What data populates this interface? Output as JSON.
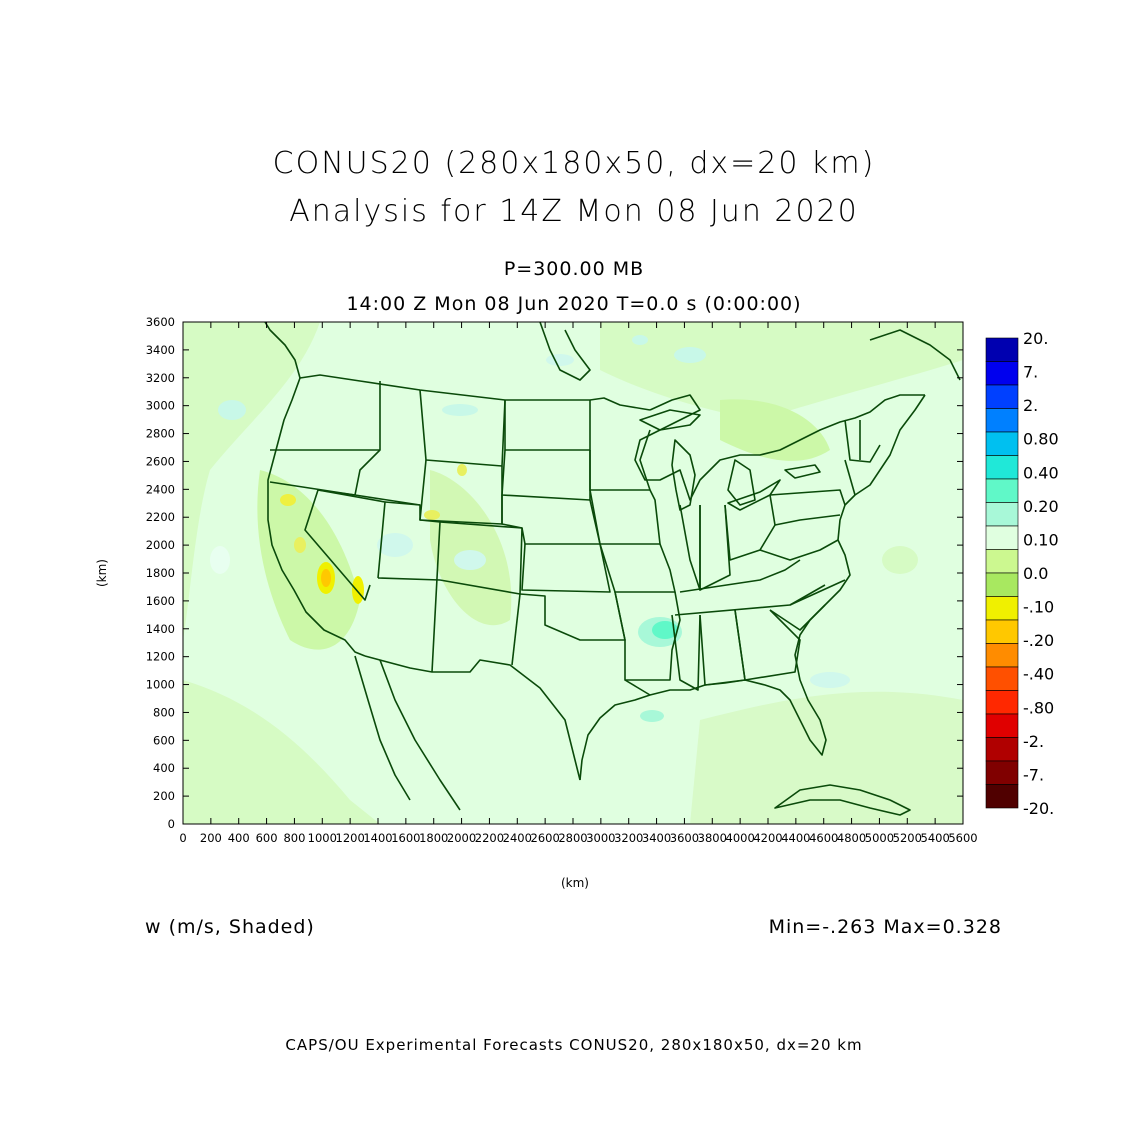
{
  "header": {
    "title_line1": "CONUS20 (280x180x50, dx=20 km)",
    "title_line2": "Analysis for 14Z Mon 08 Jun 2020",
    "level": "P=300.00 MB",
    "time": "14:00 Z Mon 08 Jun 2020    T=0.0 s (0:00:00)"
  },
  "variable_label": "w (m/s, Shaded)",
  "min_max": "Min=-.263  Max=0.328",
  "footer": "CAPS/OU Experimental Forecasts  CONUS20, 280x180x50, dx=20 km",
  "chart_data": {
    "type": "heatmap",
    "xlabel": "(km)",
    "ylabel": "(km)",
    "xlim": [
      0,
      5600
    ],
    "ylim": [
      0,
      3600
    ],
    "x_ticks": [
      0,
      200,
      400,
      600,
      800,
      1000,
      1200,
      1400,
      1600,
      1800,
      2000,
      2200,
      2400,
      2600,
      2800,
      3000,
      3200,
      3400,
      3600,
      3800,
      4000,
      4200,
      4400,
      4600,
      4800,
      5000,
      5200,
      5400,
      5600
    ],
    "y_ticks": [
      0,
      200,
      400,
      600,
      800,
      1000,
      1200,
      1400,
      1600,
      1800,
      2000,
      2200,
      2400,
      2600,
      2800,
      3000,
      3200,
      3400,
      3600
    ],
    "colorbar": {
      "labels": [
        "20.",
        "7.",
        "2.",
        "0.80",
        "0.40",
        "0.20",
        "0.10",
        "0.0",
        "-.10",
        "-.20",
        "-.40",
        "-.80",
        "-2.",
        "-7.",
        "-20."
      ],
      "colors": [
        "#0000b0",
        "#0000ee",
        "#0040ff",
        "#0080ff",
        "#00c0f0",
        "#20e8d8",
        "#60f8c8",
        "#a8f8d8",
        "#e0ffe0",
        "#ccf890",
        "#a8e860",
        "#f0f000",
        "#ffc800",
        "#ff8c00",
        "#ff5000",
        "#ff2800",
        "#e00000",
        "#b00000",
        "#800000",
        "#500000"
      ]
    },
    "field": {
      "variable": "w",
      "units": "m/s",
      "min": -0.263,
      "max": 0.328
    },
    "map": {
      "projection": "CONUS",
      "features": [
        "coastlines",
        "country borders",
        "state borders",
        "great lakes"
      ],
      "line_color": "#0a4a0a"
    }
  }
}
